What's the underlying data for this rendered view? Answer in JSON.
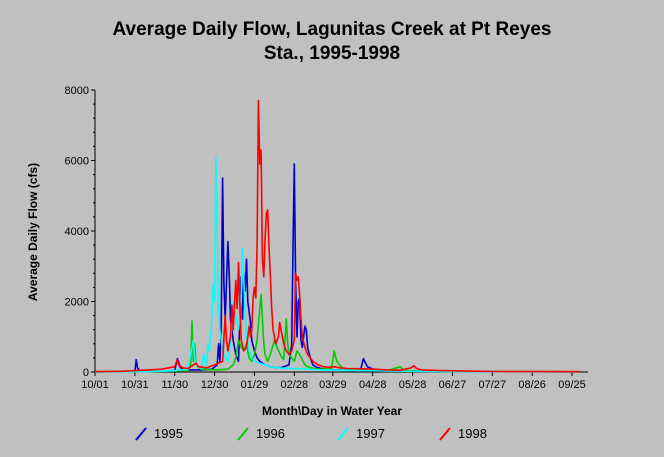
{
  "chart_data": {
    "type": "line",
    "title_line1": "Average Daily Flow, Lagunitas Creek at Pt Reyes",
    "title_line2": "Sta., 1995-1998",
    "xlabel": "Month\\Day in Water Year",
    "ylabel": "Average Daily Flow (cfs)",
    "ylim": [
      0,
      8000
    ],
    "yticks": [
      "0",
      "2000",
      "4000",
      "6000",
      "8000"
    ],
    "x_unit": "day of water year",
    "xlim": [
      0,
      365
    ],
    "xticks": [
      {
        "day": 0,
        "label": "10/01"
      },
      {
        "day": 30,
        "label": "10/31"
      },
      {
        "day": 60,
        "label": "11/30"
      },
      {
        "day": 90,
        "label": "12/30"
      },
      {
        "day": 120,
        "label": "01/29"
      },
      {
        "day": 150,
        "label": "02/28"
      },
      {
        "day": 179,
        "label": "03/29"
      },
      {
        "day": 209,
        "label": "04/28"
      },
      {
        "day": 239,
        "label": "05/28"
      },
      {
        "day": 269,
        "label": "06/27"
      },
      {
        "day": 299,
        "label": "07/27"
      },
      {
        "day": 329,
        "label": "08/26"
      },
      {
        "day": 359,
        "label": "09/25"
      }
    ],
    "series": [
      {
        "name": "1995",
        "color": "#0000cc",
        "points": [
          [
            0,
            5
          ],
          [
            30,
            10
          ],
          [
            31,
            350
          ],
          [
            32,
            120
          ],
          [
            34,
            30
          ],
          [
            50,
            20
          ],
          [
            60,
            40
          ],
          [
            62,
            380
          ],
          [
            64,
            150
          ],
          [
            66,
            60
          ],
          [
            80,
            60
          ],
          [
            88,
            80
          ],
          [
            92,
            200
          ],
          [
            93,
            800
          ],
          [
            94,
            300
          ],
          [
            95,
            1200
          ],
          [
            96,
            5500
          ],
          [
            97,
            2500
          ],
          [
            98,
            1500
          ],
          [
            100,
            3700
          ],
          [
            101,
            2800
          ],
          [
            102,
            1500
          ],
          [
            104,
            900
          ],
          [
            106,
            500
          ],
          [
            108,
            300
          ],
          [
            110,
            2700
          ],
          [
            111,
            1500
          ],
          [
            112,
            2800
          ],
          [
            113,
            2300
          ],
          [
            114,
            3200
          ],
          [
            115,
            2000
          ],
          [
            117,
            1400
          ],
          [
            118,
            900
          ],
          [
            120,
            600
          ],
          [
            122,
            400
          ],
          [
            124,
            300
          ],
          [
            126,
            250
          ],
          [
            128,
            200
          ],
          [
            132,
            150
          ],
          [
            136,
            130
          ],
          [
            140,
            120
          ],
          [
            146,
            200
          ],
          [
            148,
            800
          ],
          [
            149,
            3500
          ],
          [
            150,
            5900
          ],
          [
            151,
            2600
          ],
          [
            152,
            1000
          ],
          [
            153,
            2000
          ],
          [
            154,
            2100
          ],
          [
            155,
            900
          ],
          [
            156,
            700
          ],
          [
            158,
            1300
          ],
          [
            159,
            1200
          ],
          [
            160,
            700
          ],
          [
            162,
            400
          ],
          [
            164,
            200
          ],
          [
            166,
            150
          ],
          [
            170,
            100
          ],
          [
            180,
            60
          ],
          [
            190,
            50
          ],
          [
            195,
            40
          ],
          [
            200,
            80
          ],
          [
            202,
            380
          ],
          [
            203,
            300
          ],
          [
            205,
            150
          ],
          [
            210,
            70
          ],
          [
            220,
            40
          ],
          [
            240,
            30
          ],
          [
            270,
            15
          ],
          [
            300,
            10
          ],
          [
            330,
            8
          ],
          [
            365,
            5
          ]
        ]
      },
      {
        "name": "1996",
        "color": "#00cc00",
        "points": [
          [
            0,
            5
          ],
          [
            40,
            10
          ],
          [
            60,
            30
          ],
          [
            70,
            50
          ],
          [
            72,
            200
          ],
          [
            73,
            1450
          ],
          [
            74,
            300
          ],
          [
            75,
            800
          ],
          [
            76,
            200
          ],
          [
            80,
            80
          ],
          [
            90,
            60
          ],
          [
            100,
            80
          ],
          [
            104,
            200
          ],
          [
            106,
            400
          ],
          [
            108,
            900
          ],
          [
            110,
            700
          ],
          [
            112,
            600
          ],
          [
            114,
            800
          ],
          [
            116,
            400
          ],
          [
            118,
            300
          ],
          [
            120,
            500
          ],
          [
            122,
            900
          ],
          [
            124,
            1800
          ],
          [
            125,
            2200
          ],
          [
            126,
            1500
          ],
          [
            127,
            800
          ],
          [
            128,
            500
          ],
          [
            130,
            300
          ],
          [
            132,
            500
          ],
          [
            135,
            900
          ],
          [
            137,
            700
          ],
          [
            140,
            450
          ],
          [
            142,
            350
          ],
          [
            144,
            1500
          ],
          [
            145,
            800
          ],
          [
            146,
            500
          ],
          [
            148,
            400
          ],
          [
            150,
            300
          ],
          [
            152,
            600
          ],
          [
            154,
            500
          ],
          [
            156,
            350
          ],
          [
            158,
            200
          ],
          [
            160,
            150
          ],
          [
            165,
            100
          ],
          [
            170,
            80
          ],
          [
            178,
            100
          ],
          [
            180,
            600
          ],
          [
            182,
            300
          ],
          [
            184,
            200
          ],
          [
            186,
            120
          ],
          [
            190,
            80
          ],
          [
            200,
            60
          ],
          [
            220,
            40
          ],
          [
            230,
            150
          ],
          [
            232,
            50
          ],
          [
            240,
            30
          ],
          [
            270,
            15
          ],
          [
            300,
            10
          ],
          [
            330,
            8
          ],
          [
            365,
            5
          ]
        ]
      },
      {
        "name": "1997",
        "color": "#00ffff",
        "points": [
          [
            0,
            5
          ],
          [
            40,
            10
          ],
          [
            60,
            40
          ],
          [
            70,
            80
          ],
          [
            74,
            900
          ],
          [
            75,
            400
          ],
          [
            76,
            200
          ],
          [
            80,
            100
          ],
          [
            82,
            500
          ],
          [
            83,
            300
          ],
          [
            84,
            200
          ],
          [
            85,
            800
          ],
          [
            86,
            600
          ],
          [
            88,
            1500
          ],
          [
            89,
            2500
          ],
          [
            90,
            2000
          ],
          [
            91,
            6100
          ],
          [
            92,
            4000
          ],
          [
            93,
            1800
          ],
          [
            94,
            1200
          ],
          [
            96,
            600
          ],
          [
            98,
            400
          ],
          [
            100,
            300
          ],
          [
            102,
            800
          ],
          [
            104,
            2000
          ],
          [
            106,
            1600
          ],
          [
            108,
            1200
          ],
          [
            110,
            2000
          ],
          [
            111,
            3500
          ],
          [
            112,
            2600
          ],
          [
            113,
            1600
          ],
          [
            114,
            1000
          ],
          [
            116,
            600
          ],
          [
            118,
            400
          ],
          [
            120,
            300
          ],
          [
            124,
            250
          ],
          [
            128,
            200
          ],
          [
            132,
            150
          ],
          [
            136,
            130
          ],
          [
            140,
            110
          ],
          [
            150,
            100
          ],
          [
            160,
            80
          ],
          [
            170,
            60
          ],
          [
            180,
            50
          ],
          [
            200,
            40
          ],
          [
            220,
            30
          ],
          [
            240,
            20
          ],
          [
            270,
            12
          ],
          [
            300,
            8
          ],
          [
            330,
            6
          ],
          [
            365,
            5
          ]
        ]
      },
      {
        "name": "1998",
        "color": "#ff0000",
        "points": [
          [
            0,
            10
          ],
          [
            20,
            20
          ],
          [
            30,
            40
          ],
          [
            40,
            60
          ],
          [
            50,
            80
          ],
          [
            60,
            150
          ],
          [
            62,
            350
          ],
          [
            63,
            200
          ],
          [
            66,
            120
          ],
          [
            70,
            100
          ],
          [
            76,
            250
          ],
          [
            78,
            150
          ],
          [
            84,
            120
          ],
          [
            90,
            200
          ],
          [
            96,
            300
          ],
          [
            98,
            1600
          ],
          [
            99,
            900
          ],
          [
            100,
            600
          ],
          [
            102,
            1000
          ],
          [
            103,
            1900
          ],
          [
            104,
            1200
          ],
          [
            106,
            2600
          ],
          [
            107,
            1800
          ],
          [
            108,
            3100
          ],
          [
            109,
            2000
          ],
          [
            110,
            900
          ],
          [
            112,
            600
          ],
          [
            114,
            700
          ],
          [
            116,
            1300
          ],
          [
            117,
            1000
          ],
          [
            118,
            1200
          ],
          [
            119,
            2100
          ],
          [
            120,
            2400
          ],
          [
            121,
            2100
          ],
          [
            122,
            3600
          ],
          [
            123,
            7700
          ],
          [
            124,
            5900
          ],
          [
            125,
            6300
          ],
          [
            126,
            3200
          ],
          [
            127,
            2700
          ],
          [
            128,
            3800
          ],
          [
            129,
            4500
          ],
          [
            130,
            4600
          ],
          [
            131,
            3500
          ],
          [
            132,
            2700
          ],
          [
            133,
            1800
          ],
          [
            134,
            1200
          ],
          [
            136,
            800
          ],
          [
            138,
            1000
          ],
          [
            139,
            1400
          ],
          [
            140,
            1200
          ],
          [
            142,
            800
          ],
          [
            144,
            600
          ],
          [
            146,
            500
          ],
          [
            148,
            600
          ],
          [
            150,
            900
          ],
          [
            151,
            2800
          ],
          [
            152,
            2600
          ],
          [
            153,
            2700
          ],
          [
            154,
            2200
          ],
          [
            155,
            1500
          ],
          [
            156,
            1000
          ],
          [
            158,
            700
          ],
          [
            160,
            500
          ],
          [
            162,
            400
          ],
          [
            164,
            300
          ],
          [
            166,
            250
          ],
          [
            168,
            200
          ],
          [
            172,
            150
          ],
          [
            176,
            130
          ],
          [
            180,
            150
          ],
          [
            184,
            120
          ],
          [
            190,
            100
          ],
          [
            200,
            90
          ],
          [
            210,
            80
          ],
          [
            220,
            60
          ],
          [
            230,
            50
          ],
          [
            238,
            120
          ],
          [
            240,
            180
          ],
          [
            242,
            100
          ],
          [
            246,
            60
          ],
          [
            260,
            40
          ],
          [
            280,
            25
          ],
          [
            300,
            15
          ],
          [
            330,
            10
          ],
          [
            365,
            8
          ]
        ]
      }
    ],
    "legend": [
      "1995",
      "1996",
      "1997",
      "1998"
    ]
  }
}
